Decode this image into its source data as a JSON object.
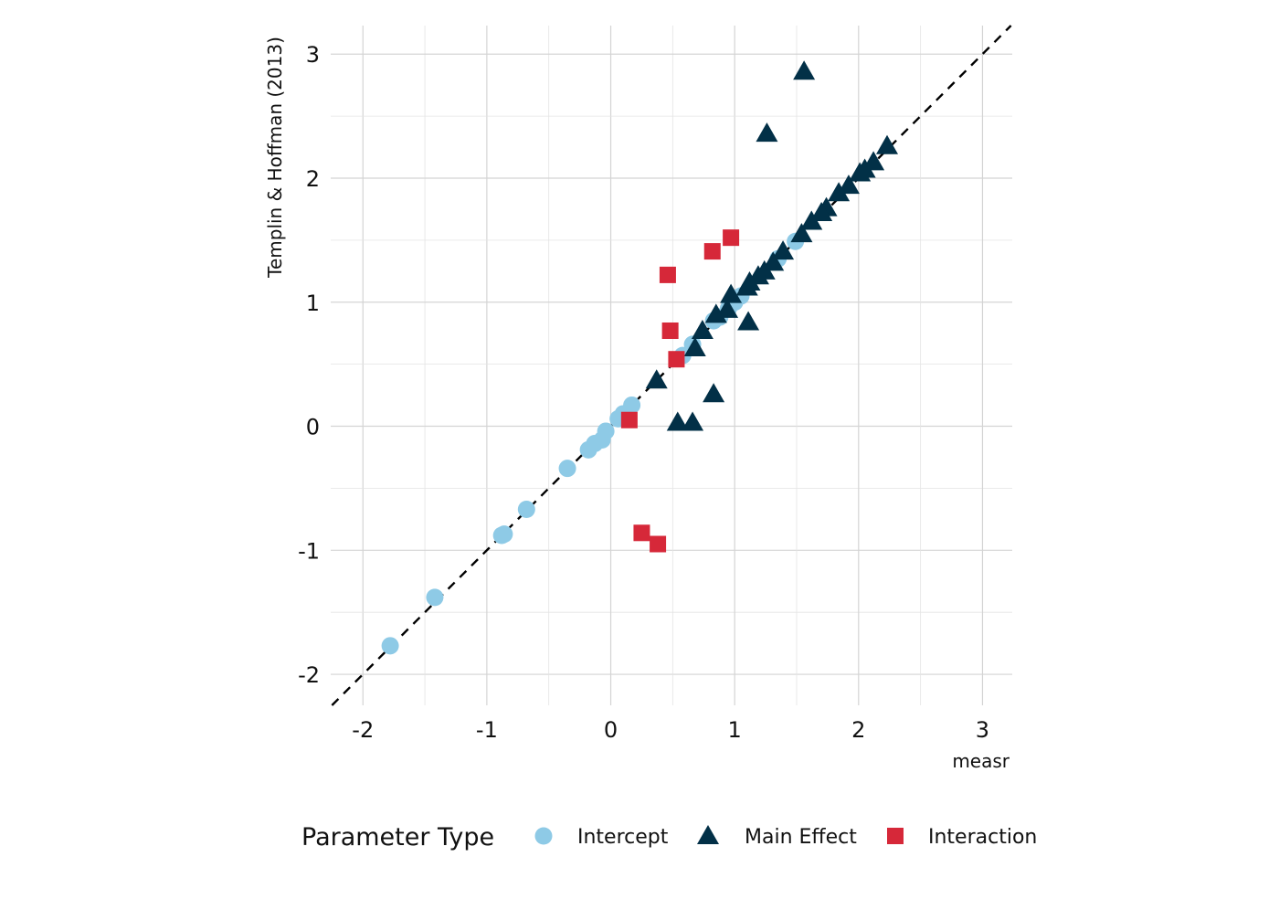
{
  "chart_data": {
    "type": "scatter",
    "title": "",
    "xlabel": "measr",
    "ylabel": "Templin & Hoffman (2013)",
    "xlim": [
      -2.26,
      3.24
    ],
    "ylim": [
      -2.25,
      3.23
    ],
    "x_ticks": [
      "-2",
      "-1",
      "0",
      "1",
      "2",
      "3"
    ],
    "y_ticks": [
      "-2",
      "-1",
      "0",
      "1",
      "2",
      "3"
    ],
    "grid": true,
    "reference_line": {
      "type": "identity",
      "style": "dashed",
      "color": "#000000"
    },
    "legend": {
      "title": "Parameter Type",
      "placement": "bottom"
    },
    "series": [
      {
        "name": "Intercept",
        "shape": "circle",
        "color": "#8ECAE6",
        "points": [
          [
            -1.78,
            -1.77
          ],
          [
            -1.42,
            -1.38
          ],
          [
            -0.88,
            -0.88
          ],
          [
            -0.86,
            -0.87
          ],
          [
            -0.68,
            -0.67
          ],
          [
            -0.35,
            -0.34
          ],
          [
            -0.18,
            -0.19
          ],
          [
            -0.13,
            -0.14
          ],
          [
            -0.07,
            -0.11
          ],
          [
            -0.04,
            -0.04
          ],
          [
            0.06,
            0.06
          ],
          [
            0.1,
            0.1
          ],
          [
            0.17,
            0.17
          ],
          [
            0.58,
            0.57
          ],
          [
            0.66,
            0.66
          ],
          [
            0.83,
            0.85
          ],
          [
            0.88,
            0.88
          ],
          [
            0.95,
            0.95
          ],
          [
            1.0,
            1.0
          ],
          [
            1.05,
            1.05
          ],
          [
            1.35,
            1.35
          ],
          [
            1.49,
            1.49
          ]
        ]
      },
      {
        "name": "Main Effect",
        "shape": "triangle",
        "color": "#023047",
        "points": [
          [
            1.56,
            2.86
          ],
          [
            1.26,
            2.36
          ],
          [
            2.23,
            2.26
          ],
          [
            2.12,
            2.13
          ],
          [
            2.05,
            2.07
          ],
          [
            2.01,
            2.04
          ],
          [
            1.92,
            1.94
          ],
          [
            1.84,
            1.88
          ],
          [
            1.74,
            1.76
          ],
          [
            1.7,
            1.72
          ],
          [
            1.62,
            1.65
          ],
          [
            1.54,
            1.55
          ],
          [
            1.39,
            1.41
          ],
          [
            1.31,
            1.32
          ],
          [
            1.24,
            1.25
          ],
          [
            1.19,
            1.21
          ],
          [
            1.12,
            1.16
          ],
          [
            1.1,
            1.12
          ],
          [
            0.97,
            1.06
          ],
          [
            0.94,
            0.94
          ],
          [
            0.85,
            0.9
          ],
          [
            0.74,
            0.77
          ],
          [
            0.68,
            0.63
          ],
          [
            0.37,
            0.37
          ],
          [
            1.11,
            0.84
          ],
          [
            0.83,
            0.26
          ],
          [
            0.54,
            0.03
          ],
          [
            0.66,
            0.03
          ]
        ]
      },
      {
        "name": "Interaction",
        "shape": "square",
        "color": "#D62839",
        "points": [
          [
            0.97,
            1.52
          ],
          [
            0.82,
            1.41
          ],
          [
            0.46,
            1.22
          ],
          [
            0.48,
            0.77
          ],
          [
            0.53,
            0.54
          ],
          [
            0.15,
            0.05
          ],
          [
            0.25,
            -0.86
          ],
          [
            0.38,
            -0.95
          ]
        ]
      }
    ]
  }
}
